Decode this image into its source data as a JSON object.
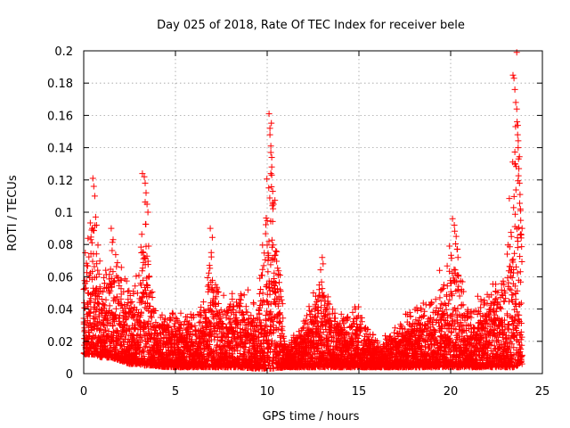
{
  "chart_data": {
    "type": "scatter",
    "title": "Day 025 of 2018, Rate Of TEC Index for receiver bele",
    "xlabel": "GPS time / hours",
    "ylabel": "ROTI / TECUs",
    "xlim": [
      0,
      25
    ],
    "ylim": [
      0,
      0.2
    ],
    "xticks": [
      0,
      5,
      10,
      15,
      20,
      25
    ],
    "xtick_labels": [
      "0",
      "5",
      "10",
      "15",
      "20",
      "25"
    ],
    "yticks": [
      0,
      0.02,
      0.04,
      0.06,
      0.08,
      0.1,
      0.12,
      0.14,
      0.16,
      0.18,
      0.2
    ],
    "ytick_labels": [
      "0",
      "0.02",
      "0.04",
      "0.06",
      "0.08",
      "0.1",
      "0.12",
      "0.14",
      "0.16",
      "0.18",
      "0.2"
    ],
    "grid": true,
    "marker": "plus",
    "series": [
      {
        "name": "ROTI",
        "color": "#ff0000",
        "envelope": [
          {
            "x": 0.0,
            "lo": 0.012,
            "hi": 0.068
          },
          {
            "x": 0.5,
            "lo": 0.012,
            "hi": 0.12
          },
          {
            "x": 1.0,
            "lo": 0.01,
            "hi": 0.058
          },
          {
            "x": 1.5,
            "lo": 0.01,
            "hi": 0.09
          },
          {
            "x": 2.0,
            "lo": 0.008,
            "hi": 0.068
          },
          {
            "x": 2.5,
            "lo": 0.006,
            "hi": 0.06
          },
          {
            "x": 3.0,
            "lo": 0.006,
            "hi": 0.065
          },
          {
            "x": 3.3,
            "lo": 0.005,
            "hi": 0.125
          },
          {
            "x": 3.8,
            "lo": 0.005,
            "hi": 0.048
          },
          {
            "x": 4.5,
            "lo": 0.004,
            "hi": 0.04
          },
          {
            "x": 5.5,
            "lo": 0.004,
            "hi": 0.04
          },
          {
            "x": 6.5,
            "lo": 0.004,
            "hi": 0.047
          },
          {
            "x": 7.0,
            "lo": 0.004,
            "hi": 0.09
          },
          {
            "x": 7.5,
            "lo": 0.004,
            "hi": 0.048
          },
          {
            "x": 8.5,
            "lo": 0.004,
            "hi": 0.056
          },
          {
            "x": 9.5,
            "lo": 0.003,
            "hi": 0.05
          },
          {
            "x": 10.2,
            "lo": 0.003,
            "hi": 0.161
          },
          {
            "x": 11.0,
            "lo": 0.004,
            "hi": 0.018
          },
          {
            "x": 12.0,
            "lo": 0.004,
            "hi": 0.036
          },
          {
            "x": 13.0,
            "lo": 0.004,
            "hi": 0.072
          },
          {
            "x": 14.0,
            "lo": 0.004,
            "hi": 0.04
          },
          {
            "x": 15.0,
            "lo": 0.004,
            "hi": 0.046
          },
          {
            "x": 16.0,
            "lo": 0.004,
            "hi": 0.022
          },
          {
            "x": 17.0,
            "lo": 0.004,
            "hi": 0.03
          },
          {
            "x": 18.0,
            "lo": 0.004,
            "hi": 0.045
          },
          {
            "x": 19.0,
            "lo": 0.004,
            "hi": 0.05
          },
          {
            "x": 19.6,
            "lo": 0.004,
            "hi": 0.062
          },
          {
            "x": 20.2,
            "lo": 0.004,
            "hi": 0.098
          },
          {
            "x": 21.0,
            "lo": 0.004,
            "hi": 0.04
          },
          {
            "x": 22.0,
            "lo": 0.004,
            "hi": 0.06
          },
          {
            "x": 23.0,
            "lo": 0.004,
            "hi": 0.068
          },
          {
            "x": 23.5,
            "lo": 0.004,
            "hi": 0.199
          },
          {
            "x": 23.8,
            "lo": 0.006,
            "hi": 0.14
          }
        ],
        "outliers": [
          [
            0.5,
            0.121
          ],
          [
            0.55,
            0.116
          ],
          [
            0.6,
            0.11
          ],
          [
            0.65,
            0.097
          ],
          [
            0.7,
            0.092
          ],
          [
            1.5,
            0.09
          ],
          [
            1.6,
            0.083
          ],
          [
            3.2,
            0.124
          ],
          [
            3.3,
            0.122
          ],
          [
            3.35,
            0.118
          ],
          [
            3.4,
            0.112
          ],
          [
            3.45,
            0.105
          ],
          [
            3.5,
            0.1
          ],
          [
            6.9,
            0.09
          ],
          [
            6.95,
            0.075
          ],
          [
            10.05,
            0.07
          ],
          [
            10.1,
            0.161
          ],
          [
            10.15,
            0.152
          ],
          [
            10.15,
            0.148
          ],
          [
            10.2,
            0.141
          ],
          [
            10.2,
            0.137
          ],
          [
            10.25,
            0.128
          ],
          [
            10.25,
            0.123
          ],
          [
            10.3,
            0.113
          ],
          [
            10.3,
            0.106
          ],
          [
            10.35,
            0.105
          ],
          [
            13.0,
            0.072
          ],
          [
            13.05,
            0.068
          ],
          [
            19.4,
            0.064
          ],
          [
            20.1,
            0.096
          ],
          [
            20.2,
            0.092
          ],
          [
            20.3,
            0.085
          ],
          [
            20.35,
            0.077
          ],
          [
            20.4,
            0.072
          ],
          [
            23.4,
            0.185
          ],
          [
            23.45,
            0.183
          ],
          [
            23.5,
            0.176
          ],
          [
            23.55,
            0.168
          ],
          [
            23.6,
            0.199
          ],
          [
            23.6,
            0.164
          ],
          [
            23.62,
            0.156
          ],
          [
            23.65,
            0.148
          ],
          [
            23.68,
            0.14
          ],
          [
            23.7,
            0.133
          ],
          [
            23.72,
            0.127
          ],
          [
            23.75,
            0.118
          ],
          [
            23.78,
            0.111
          ],
          [
            23.8,
            0.102
          ],
          [
            23.82,
            0.095
          ],
          [
            23.85,
            0.086
          ]
        ]
      }
    ]
  }
}
